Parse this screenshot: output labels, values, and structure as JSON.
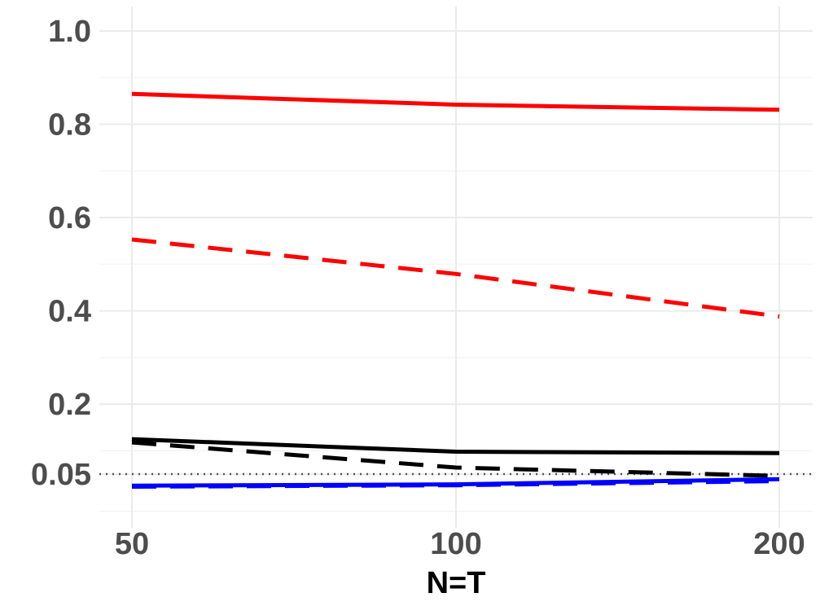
{
  "chart_data": {
    "type": "line",
    "title": "",
    "xlabel": "N=T",
    "ylabel": "",
    "x": [
      50,
      100,
      200
    ],
    "x_tick_labels": [
      "50",
      "100",
      "200"
    ],
    "y_ticks": [
      0.05,
      0.2,
      0.4,
      0.6,
      0.8,
      1.0
    ],
    "y_tick_labels": [
      "0.05",
      "0.2",
      "0.4",
      "0.6",
      "0.8",
      "1.0"
    ],
    "ylim": [
      -0.04,
      1.05
    ],
    "x_scale": "categorical-equal-spacing",
    "grid": true,
    "reference_line": {
      "y": 0.05,
      "style": "dotted",
      "color": "#555555"
    },
    "series": [
      {
        "values": [
          0.865,
          0.842,
          0.831
        ],
        "color": "#ff0000",
        "style": "solid"
      },
      {
        "values": [
          0.553,
          0.479,
          0.388
        ],
        "color": "#ff0000",
        "style": "dashed"
      },
      {
        "values": [
          0.125,
          0.098,
          0.095
        ],
        "color": "#000000",
        "style": "solid"
      },
      {
        "values": [
          0.118,
          0.064,
          0.046
        ],
        "color": "#000000",
        "style": "dashed"
      },
      {
        "values": [
          0.025,
          0.028,
          0.039
        ],
        "color": "#0000ff",
        "style": "solid"
      },
      {
        "values": [
          0.023,
          0.026,
          0.035
        ],
        "color": "#0000ff",
        "style": "dashed"
      }
    ]
  }
}
